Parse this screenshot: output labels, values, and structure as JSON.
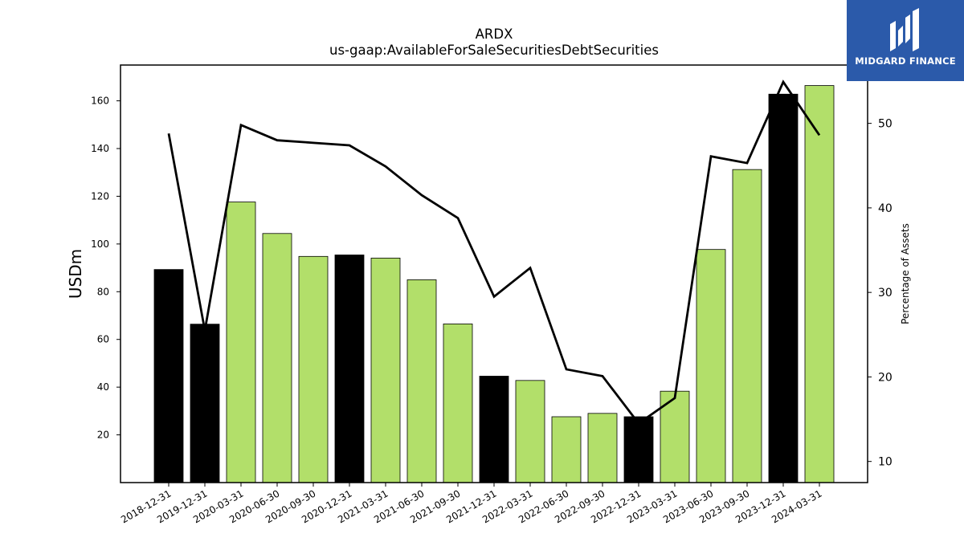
{
  "chart_data": {
    "type": "bar+line",
    "title": "ARDX",
    "subtitle": "us-gaap:AvailableForSaleSecuritiesDebtSecurities",
    "ylabel": "USDm",
    "y2label": "Percentage of Assets",
    "categories": [
      "2018-12-31",
      "2019-12-31",
      "2020-03-31",
      "2020-06-30",
      "2020-09-30",
      "2020-12-31",
      "2021-03-31",
      "2021-06-30",
      "2021-09-30",
      "2021-12-31",
      "2022-03-31",
      "2022-06-30",
      "2022-09-30",
      "2022-12-31",
      "2023-03-31",
      "2023-06-30",
      "2023-09-30",
      "2023-12-31",
      "2024-03-31"
    ],
    "bar_values": [
      89.3,
      66.4,
      117.6,
      104.4,
      94.8,
      95.4,
      94.1,
      85.0,
      66.5,
      44.6,
      42.8,
      27.6,
      29.0,
      27.6,
      38.3,
      97.7,
      131.2,
      162.8,
      166.4
    ],
    "bar_kinds": [
      "annual",
      "annual",
      "quarter",
      "quarter",
      "quarter",
      "annual",
      "quarter",
      "quarter",
      "quarter",
      "annual",
      "quarter",
      "quarter",
      "quarter",
      "annual",
      "quarter",
      "quarter",
      "quarter",
      "annual",
      "quarter"
    ],
    "line_values": [
      48.8,
      25.5,
      49.8,
      48.0,
      47.7,
      47.4,
      44.9,
      41.5,
      38.8,
      29.5,
      32.9,
      20.9,
      20.1,
      14.5,
      17.5,
      46.1,
      45.3,
      54.9,
      48.6
    ],
    "ylim": [
      0,
      175
    ],
    "y2lim": [
      7.5,
      56.9
    ],
    "yticks": [
      20,
      40,
      60,
      80,
      100,
      120,
      140,
      160
    ],
    "y2ticks": [
      10,
      20,
      30,
      40,
      50
    ],
    "colors": {
      "annual": "#000000",
      "quarter": "#b2df6a",
      "line": "#000000"
    }
  },
  "logo": {
    "text": "MIDGARD FINANCE",
    "bg": "#2b5aaa"
  }
}
